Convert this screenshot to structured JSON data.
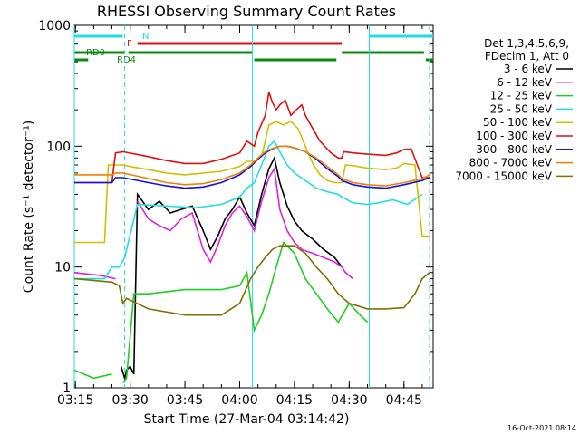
{
  "chart_data": {
    "type": "line",
    "title": "RHESSI Observing Summary Count Rates",
    "xlabel": "Start Time (27-Mar-04 03:14:42)",
    "ylabel": "Count Rate (s⁻¹ detector⁻¹)",
    "scale_y": "log",
    "ylim": [
      1,
      1000
    ],
    "xlim": [
      "03:14:42",
      "04:53:00"
    ],
    "x_ticks": [
      "03:15",
      "03:30",
      "03:45",
      "04:00",
      "04:15",
      "04:30",
      "04:45"
    ],
    "y_ticks": [
      "1",
      "10",
      "100",
      "1000"
    ],
    "timestamp": "16-Oct-2021 08:14",
    "legend_header": [
      "Det 1,3,4,5,6,9,",
      "FDecim 1, Att 0"
    ],
    "legend_placement": "right",
    "flags": [
      {
        "label": "N",
        "color": "#22dde0",
        "segments": [
          [
            "03:14:42",
            "03:28:00"
          ],
          [
            "04:35:30",
            "04:53:00"
          ]
        ]
      },
      {
        "label": "F",
        "color": "#e01010",
        "segments": [
          [
            "03:32:00",
            "04:28:00"
          ]
        ]
      },
      {
        "label": "RD0",
        "color": "#0a8a0a",
        "segments": [
          [
            "03:14:42",
            "03:28:30"
          ],
          [
            "03:29:30",
            "04:03:30"
          ],
          [
            "04:28:00",
            "04:50:30"
          ]
        ]
      },
      {
        "label": "RD4",
        "color": "#0a8a0a",
        "segments": [
          [
            "03:14:42",
            "03:18:30"
          ],
          [
            "04:04:00",
            "04:26:30"
          ],
          [
            "04:51:00",
            "04:53:00"
          ]
        ]
      }
    ],
    "dashed_markers": [
      "03:28:30",
      "04:52:00"
    ],
    "solid_markers": [
      "03:14:42",
      "04:03:30",
      "04:35:30"
    ],
    "series": [
      {
        "name": "3 - 6 keV",
        "color": "#000000",
        "x": [
          "03:14:42",
          "03:25:00",
          "03:27:30",
          "03:28:30",
          "03:29:00",
          "03:30:00",
          "03:31:00",
          "03:32:00",
          "03:35:00",
          "03:38:00",
          "03:41:00",
          "03:44:00",
          "03:47:00",
          "03:50:00",
          "03:52:00",
          "03:54:00",
          "03:56:00",
          "03:58:00",
          "04:00:00",
          "04:02:00",
          "04:04:00",
          "04:06:00",
          "04:08:00",
          "04:09:30",
          "04:11:00",
          "04:13:00",
          "04:15:00",
          "04:17:00",
          "04:20:00",
          "04:23:00",
          "04:26:00",
          "04:28:00",
          "04:31:00",
          "04:33:00",
          "04:35:00",
          "04:36:00",
          "04:40:00",
          "04:45:00",
          "04:50:00"
        ],
        "y": [
          null,
          null,
          1.5,
          1.2,
          1.4,
          1.5,
          1.3,
          40,
          30,
          35,
          28,
          30,
          32,
          20,
          14,
          18,
          25,
          30,
          38,
          28,
          22,
          40,
          65,
          80,
          50,
          32,
          24,
          20,
          17,
          14,
          12,
          10,
          null,
          null,
          null,
          null,
          null,
          null,
          null
        ]
      },
      {
        "name": "6 - 12 keV",
        "color": "#e020e0",
        "x": [
          "03:14:42",
          "03:22:00",
          "03:26:00",
          "03:28:00",
          "03:29:00",
          "03:32:00",
          "03:35:00",
          "03:38:00",
          "03:41:00",
          "03:44:00",
          "03:47:00",
          "03:50:00",
          "03:52:00",
          "03:54:00",
          "03:56:00",
          "03:58:00",
          "04:00:00",
          "04:02:00",
          "04:04:00",
          "04:06:00",
          "04:08:00",
          "04:09:30",
          "04:11:00",
          "04:13:00",
          "04:15:00",
          "04:17:00",
          "04:20:00",
          "04:23:00",
          "04:26:00",
          "04:28:00",
          "04:29:00",
          "04:31:00"
        ],
        "y": [
          9,
          8.5,
          8,
          null,
          null,
          35,
          25,
          22,
          20,
          25,
          28,
          14,
          11,
          15,
          22,
          28,
          32,
          26,
          20,
          35,
          55,
          65,
          30,
          20,
          16,
          14,
          13,
          12,
          11,
          10,
          9,
          8
        ]
      },
      {
        "name": "12 - 25 keV",
        "color": "#20d020",
        "x": [
          "03:14:42",
          "03:20:00",
          "03:25:00",
          "03:26:00",
          "03:28:00",
          "03:29:00",
          "03:31:00",
          "03:35:00",
          "03:45:00",
          "03:55:00",
          "04:00:00",
          "04:02:00",
          "04:04:00",
          "04:06:00",
          "04:08:00",
          "04:10:00",
          "04:12:00",
          "04:15:00",
          "04:18:00",
          "04:21:00",
          "04:24:00",
          "04:27:00",
          "04:30:00",
          "04:33:00",
          "04:35:00"
        ],
        "y": [
          1.4,
          1.2,
          1.3,
          null,
          1.1,
          1.2,
          6,
          6,
          6.5,
          6.5,
          7,
          9,
          3,
          4,
          6,
          10,
          16,
          13,
          8,
          6,
          4.5,
          3.5,
          5,
          4,
          3.5
        ]
      },
      {
        "name": "25 - 50 keV",
        "color": "#22dde0",
        "x": [
          "03:14:42",
          "03:23:00",
          "03:25:00",
          "03:27:00",
          "03:28:30",
          "03:32:00",
          "03:40:00",
          "03:48:00",
          "03:55:00",
          "04:00:00",
          "04:02:00",
          "04:04:00",
          "04:06:00",
          "04:08:00",
          "04:09:30",
          "04:11:00",
          "04:13:00",
          "04:15:00",
          "04:18:00",
          "04:21:00",
          "04:24:00",
          "04:27:00",
          "04:28:00",
          "04:31:00",
          "04:35:00",
          "04:38:00",
          "04:42:00",
          "04:46:00",
          "04:50:00"
        ],
        "y": [
          8,
          8,
          10,
          10,
          12,
          33,
          32,
          31,
          33,
          38,
          45,
          50,
          70,
          100,
          110,
          90,
          70,
          60,
          52,
          45,
          42,
          40,
          38,
          34,
          33,
          34,
          36,
          33,
          40
        ]
      },
      {
        "name": "50 - 100 keV",
        "color": "#d0c000",
        "x": [
          "03:14:42",
          "03:23:00",
          "03:24:00",
          "03:28:00",
          "03:30:00",
          "03:35:00",
          "03:40:00",
          "03:45:00",
          "03:50:00",
          "03:55:00",
          "04:00:00",
          "04:02:00",
          "04:04:00",
          "04:06:00",
          "04:08:00",
          "04:10:00",
          "04:12:00",
          "04:14:00",
          "04:16:00",
          "04:18:00",
          "04:20:00",
          "04:22:00",
          "04:24:00",
          "04:26:00",
          "04:28:00",
          "04:29:00",
          "04:31:00",
          "04:35:00",
          "04:40:00",
          "04:43:00",
          "04:45:00",
          "04:48:00",
          "04:50:00",
          "04:52:00"
        ],
        "y": [
          16,
          16,
          70,
          70,
          68,
          64,
          60,
          58,
          60,
          62,
          68,
          75,
          75,
          82,
          150,
          160,
          150,
          160,
          140,
          100,
          72,
          58,
          52,
          50,
          50,
          70,
          69,
          66,
          64,
          66,
          72,
          70,
          18,
          18
        ]
      },
      {
        "name": "100 - 300 keV",
        "color": "#e01010",
        "x": [
          "03:14:42",
          "03:25:00",
          "03:26:00",
          "03:28:00",
          "03:35:00",
          "03:40:00",
          "03:45:00",
          "03:50:00",
          "03:55:00",
          "04:00:00",
          "04:02:00",
          "04:04:00",
          "04:05:00",
          "04:07:00",
          "04:08:00",
          "04:09:00",
          "04:10:00",
          "04:11:00",
          "04:12:30",
          "04:14:00",
          "04:15:30",
          "04:17:00",
          "04:18:00",
          "04:20:00",
          "04:22:00",
          "04:25:00",
          "04:27:00",
          "04:28:00",
          "04:28:30",
          "04:31:00",
          "04:35:00",
          "04:40:00",
          "04:43:00",
          "04:45:00",
          "04:47:00",
          "04:50:00",
          "04:52:00"
        ],
        "y": [
          50,
          50,
          88,
          90,
          82,
          76,
          72,
          72,
          78,
          88,
          110,
          100,
          130,
          180,
          280,
          230,
          200,
          220,
          240,
          180,
          200,
          220,
          180,
          140,
          110,
          88,
          80,
          80,
          90,
          88,
          86,
          84,
          88,
          94,
          95,
          55,
          55
        ]
      },
      {
        "name": "300 - 800 keV",
        "color": "#1010e0",
        "x": [
          "03:14:42",
          "03:25:00",
          "03:26:00",
          "03:28:00",
          "03:35:00",
          "03:40:00",
          "03:45:00",
          "03:50:00",
          "03:55:00",
          "04:00:00",
          "04:03:00",
          "04:05:00",
          "04:07:00",
          "04:09:00",
          "04:11:00",
          "04:13:00",
          "04:15:00",
          "04:18:00",
          "04:21:00",
          "04:24:00",
          "04:27:00",
          "04:28:00",
          "04:31:00",
          "04:35:00",
          "04:40:00",
          "04:45:00",
          "04:50:00",
          "04:52:00"
        ],
        "y": [
          50,
          50,
          55,
          55,
          50,
          47,
          45,
          46,
          50,
          58,
          68,
          78,
          88,
          95,
          100,
          100,
          97,
          90,
          78,
          65,
          56,
          52,
          48,
          46,
          45,
          48,
          52,
          55
        ]
      },
      {
        "name": "800 - 7000 keV",
        "color": "#f08000",
        "x": [
          "03:14:42",
          "03:25:00",
          "03:26:00",
          "03:28:00",
          "03:35:00",
          "03:40:00",
          "03:45:00",
          "03:50:00",
          "03:55:00",
          "04:00:00",
          "04:03:00",
          "04:05:00",
          "04:07:00",
          "04:09:00",
          "04:11:00",
          "04:13:00",
          "04:15:00",
          "04:18:00",
          "04:21:00",
          "04:24:00",
          "04:27:00",
          "04:28:00",
          "04:31:00",
          "04:35:00",
          "04:40:00",
          "04:45:00",
          "04:50:00",
          "04:52:00"
        ],
        "y": [
          58,
          58,
          60,
          60,
          54,
          50,
          48,
          49,
          53,
          60,
          70,
          80,
          90,
          96,
          100,
          100,
          97,
          90,
          80,
          68,
          58,
          54,
          50,
          48,
          47,
          50,
          54,
          58
        ]
      },
      {
        "name": "7000 - 15000 keV",
        "color": "#807000",
        "x": [
          "03:14:42",
          "03:25:00",
          "03:27:00",
          "03:28:00",
          "03:29:00",
          "03:35:00",
          "03:45:00",
          "03:55:00",
          "04:00:00",
          "04:03:00",
          "04:05:00",
          "04:07:00",
          "04:09:00",
          "04:11:00",
          "04:13:00",
          "04:15:00",
          "04:18:00",
          "04:21:00",
          "04:24:00",
          "04:27:00",
          "04:30:00",
          "04:35:00",
          "04:40:00",
          "04:45:00",
          "04:48:00",
          "04:50:00",
          "04:52:00"
        ],
        "y": [
          8,
          7.5,
          7,
          5,
          5.5,
          4.5,
          4,
          4,
          5,
          8,
          10,
          12,
          14,
          15,
          15,
          15,
          13,
          10,
          8,
          6,
          5,
          4.5,
          4.5,
          4.6,
          6,
          8,
          9
        ]
      }
    ]
  }
}
